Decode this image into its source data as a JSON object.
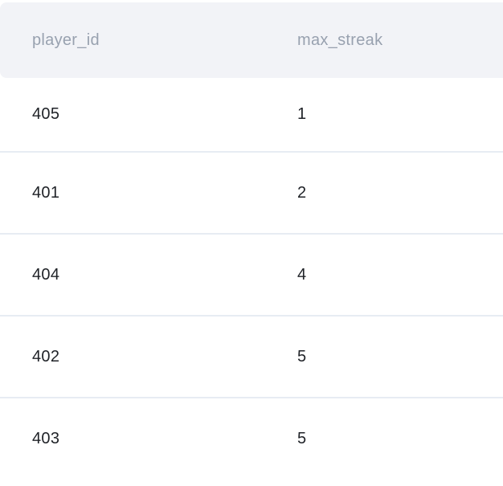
{
  "table": {
    "columns": [
      {
        "label": "player_id"
      },
      {
        "label": "max_streak"
      }
    ],
    "rows": [
      [
        "405",
        "1"
      ],
      [
        "401",
        "2"
      ],
      [
        "404",
        "4"
      ],
      [
        "402",
        "5"
      ],
      [
        "403",
        "5"
      ]
    ]
  },
  "colors": {
    "header_bg": "#f2f3f7",
    "header_text": "#98a1af",
    "cell_text": "#202328",
    "divider": "#e7ecf3",
    "page_bg": "#ffffff"
  }
}
